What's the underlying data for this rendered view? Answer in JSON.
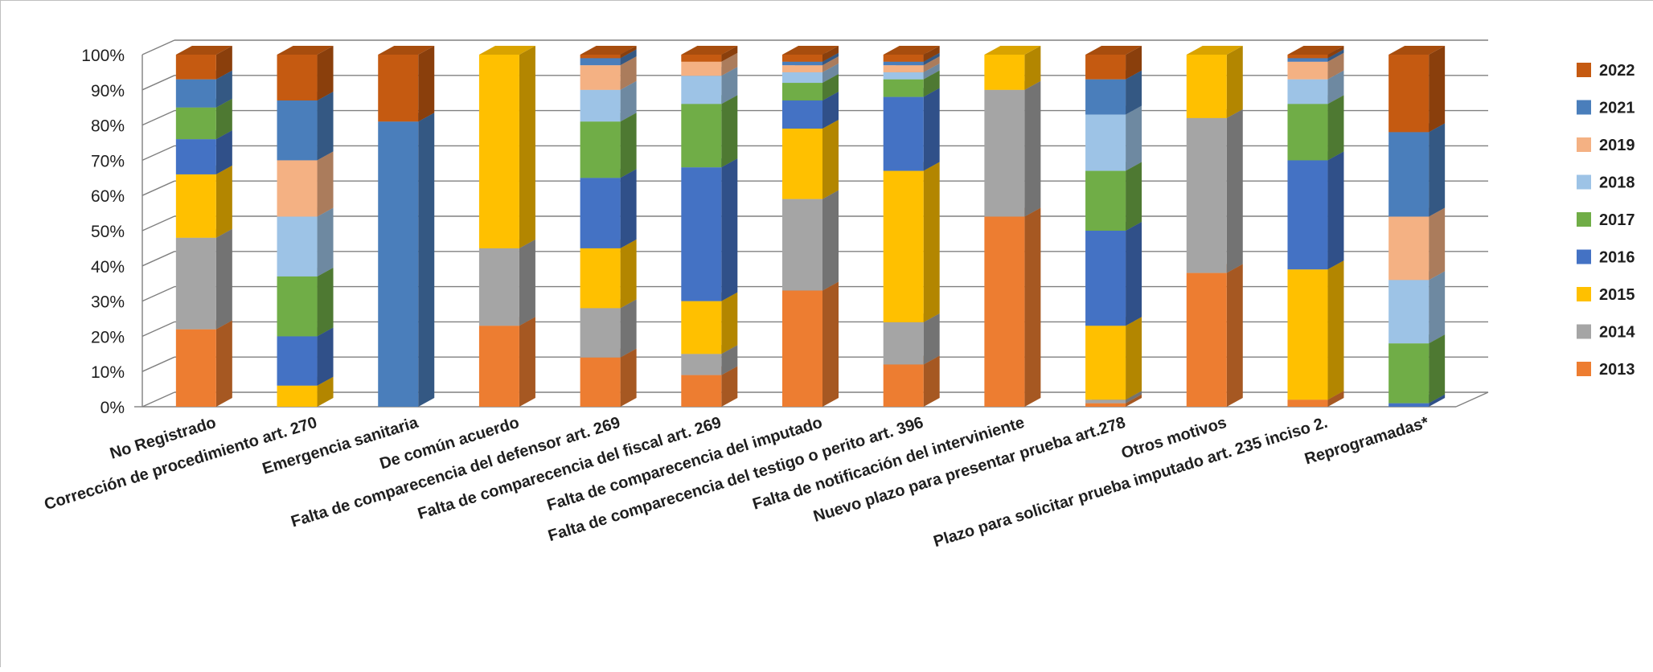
{
  "chart_data": {
    "type": "bar",
    "stacked": true,
    "percent_stacked": true,
    "three_d": true,
    "categories": [
      "No Registrado",
      "Corrección de procedimiento art. 270",
      "Emergencia sanitaria",
      "De común acuerdo",
      "Falta de comparecencia del defensor art. 269",
      "Falta de comparecencia del fiscal art. 269",
      "Falta de comparecencia del imputado",
      "Falta de comparecencia del testigo o perito art. 396",
      "Falta de notificación del interviniente",
      "Nuevo plazo para presentar prueba art.278",
      "Otros motivos",
      "Plazo para solicitar prueba imputado art. 235 inciso 2.",
      "Reprogramadas*"
    ],
    "series": [
      {
        "name": "2013",
        "color": "#ED7D31",
        "values": [
          22,
          0,
          0,
          23,
          14,
          9,
          33,
          12,
          54,
          1,
          38,
          2,
          0
        ]
      },
      {
        "name": "2014",
        "color": "#A5A5A5",
        "values": [
          26,
          0,
          0,
          22,
          14,
          6,
          26,
          12,
          36,
          1,
          44,
          0,
          0
        ]
      },
      {
        "name": "2015",
        "color": "#FFC000",
        "values": [
          18,
          6,
          0,
          55,
          17,
          15,
          20,
          43,
          10,
          21,
          18,
          37,
          0
        ]
      },
      {
        "name": "2016",
        "color": "#4472C4",
        "values": [
          10,
          14,
          0,
          0,
          20,
          38,
          8,
          21,
          0,
          27,
          0,
          31,
          1
        ]
      },
      {
        "name": "2017",
        "color": "#70AD47",
        "values": [
          9,
          17,
          0,
          0,
          16,
          18,
          5,
          5,
          0,
          17,
          0,
          16,
          17
        ]
      },
      {
        "name": "2018",
        "color": "#9DC3E6",
        "values": [
          0,
          17,
          0,
          0,
          9,
          8,
          3,
          2,
          0,
          16,
          0,
          7,
          18
        ]
      },
      {
        "name": "2019",
        "color": "#F4B183",
        "values": [
          0,
          16,
          0,
          0,
          7,
          4,
          2,
          2,
          0,
          0,
          0,
          5,
          18
        ]
      },
      {
        "name": "2021",
        "color": "#4A7EBB",
        "values": [
          8,
          17,
          81,
          0,
          2,
          0,
          1,
          1,
          0,
          10,
          0,
          1,
          24
        ]
      },
      {
        "name": "2022",
        "color": "#C55A11",
        "values": [
          7,
          13,
          19,
          0,
          1,
          2,
          2,
          2,
          0,
          7,
          0,
          1,
          22
        ]
      }
    ],
    "legend_order": [
      "2022",
      "2021",
      "2019",
      "2018",
      "2017",
      "2016",
      "2015",
      "2014",
      "2013"
    ],
    "y_ticks": [
      "0%",
      "10%",
      "20%",
      "30%",
      "40%",
      "50%",
      "60%",
      "70%",
      "80%",
      "90%",
      "100%"
    ],
    "ylim": [
      0,
      100
    ],
    "grid": true,
    "legend_position": "right"
  }
}
